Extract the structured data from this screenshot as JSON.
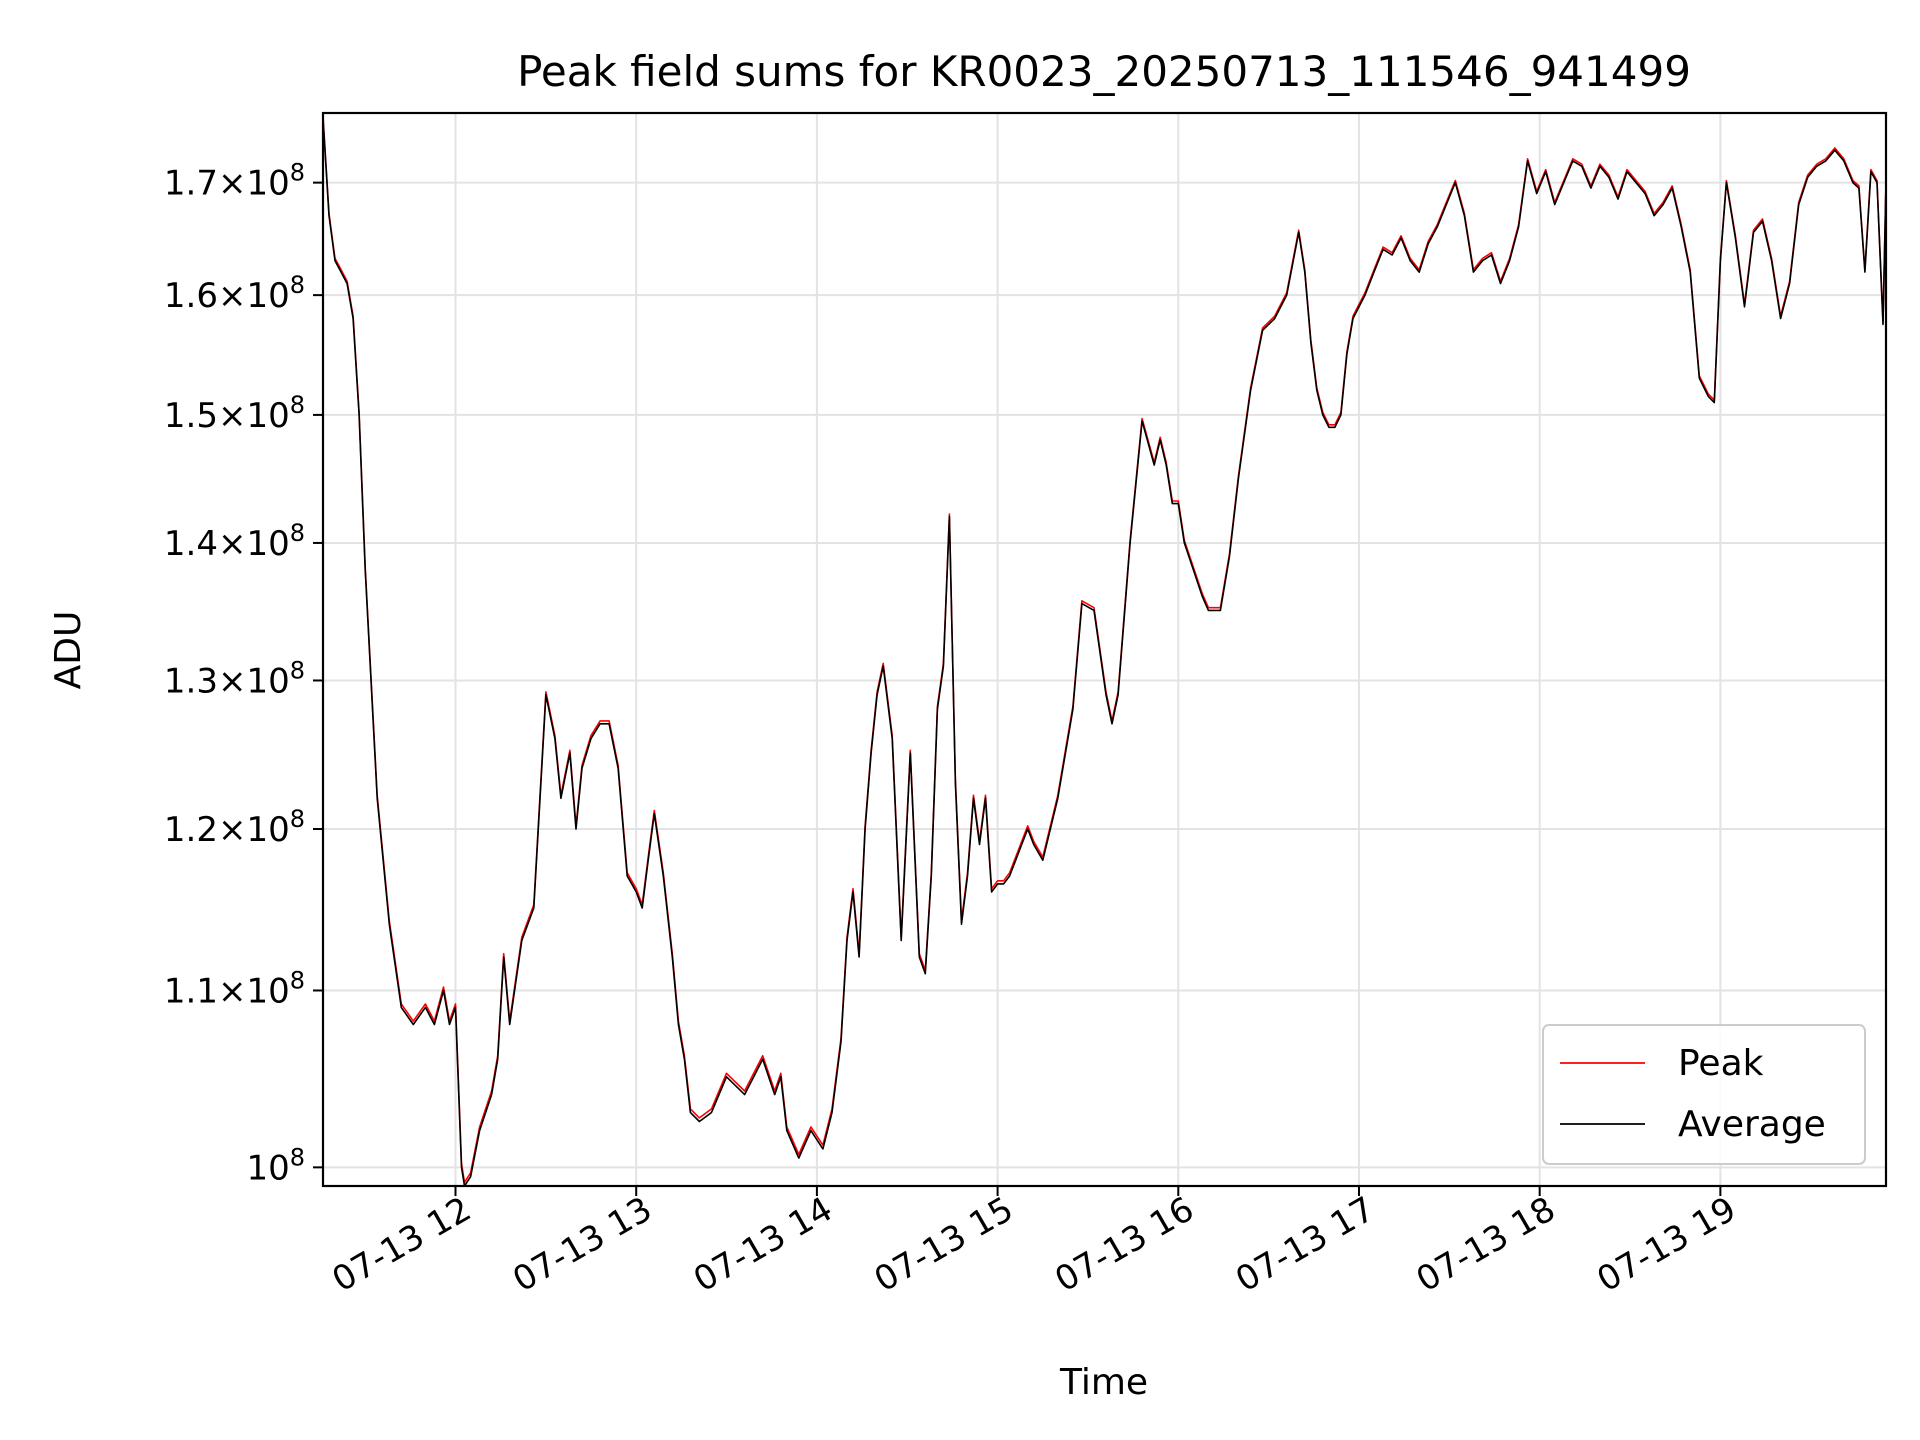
{
  "chart_data": {
    "type": "line",
    "title": "Peak field sums for KR0023_20250713_111546_941499",
    "xlabel": "Time",
    "ylabel": "ADU",
    "y_scale": "log",
    "x_unit": "datetime (2025-07-13 HH:MM)",
    "xlim": [
      "2025-07-13 11:16",
      "2025-07-13 19:55"
    ],
    "ylim": [
      99000000,
      176500000
    ],
    "grid": true,
    "legend_position": "lower-right",
    "x_ticks": [
      "07-13 12",
      "07-13 13",
      "07-13 14",
      "07-13 15",
      "07-13 16",
      "07-13 17",
      "07-13 18",
      "07-13 19"
    ],
    "y_ticks": [
      {
        "value": 100000000,
        "label": "10^8"
      },
      {
        "value": 110000000,
        "label": "1.1×10^8"
      },
      {
        "value": 120000000,
        "label": "1.2×10^8"
      },
      {
        "value": 130000000,
        "label": "1.3×10^8"
      },
      {
        "value": 140000000,
        "label": "1.4×10^8"
      },
      {
        "value": 150000000,
        "label": "1.5×10^8"
      },
      {
        "value": 160000000,
        "label": "1.6×10^8"
      },
      {
        "value": 170000000,
        "label": "1.7×10^8"
      }
    ],
    "series": [
      {
        "name": "Peak",
        "color": "#ff0000",
        "values_ref": "x_y_below",
        "offset_above_average": 200000
      },
      {
        "name": "Average",
        "color": "#000000"
      }
    ],
    "x": [
      "11:16",
      "11:18",
      "11:20",
      "11:22",
      "11:24",
      "11:26",
      "11:28",
      "11:30",
      "11:34",
      "11:38",
      "11:42",
      "11:46",
      "11:50",
      "11:53",
      "11:56",
      "11:58",
      "12:00",
      "12:02",
      "12:03",
      "12:05",
      "12:08",
      "12:12",
      "12:14",
      "12:16",
      "12:18",
      "12:22",
      "12:26",
      "12:30",
      "12:33",
      "12:35",
      "12:38",
      "12:40",
      "12:42",
      "12:45",
      "12:48",
      "12:51",
      "12:54",
      "12:57",
      "13:00",
      "13:02",
      "13:04",
      "13:06",
      "13:09",
      "13:12",
      "13:14",
      "13:16",
      "13:18",
      "13:21",
      "13:25",
      "13:30",
      "13:36",
      "13:42",
      "13:46",
      "13:48",
      "13:50",
      "13:54",
      "13:58",
      "14:02",
      "14:05",
      "14:08",
      "14:10",
      "14:12",
      "14:14",
      "14:16",
      "14:18",
      "14:20",
      "14:22",
      "14:25",
      "14:28",
      "14:31",
      "14:34",
      "14:36",
      "14:38",
      "14:40",
      "14:42",
      "14:44",
      "14:46",
      "14:48",
      "14:50",
      "14:52",
      "14:54",
      "14:56",
      "14:58",
      "15:00",
      "15:02",
      "15:04",
      "15:06",
      "15:08",
      "15:10",
      "15:12",
      "15:15",
      "15:20",
      "15:25",
      "15:28",
      "15:32",
      "15:36",
      "15:38",
      "15:40",
      "15:44",
      "15:48",
      "15:52",
      "15:54",
      "15:56",
      "15:58",
      "16:00",
      "16:02",
      "16:05",
      "16:08",
      "16:10",
      "16:12",
      "16:14",
      "16:17",
      "16:20",
      "16:24",
      "16:28",
      "16:32",
      "16:36",
      "16:40",
      "16:42",
      "16:44",
      "16:46",
      "16:48",
      "16:50",
      "16:52",
      "16:54",
      "16:56",
      "16:58",
      "17:00",
      "17:02",
      "17:05",
      "17:08",
      "17:11",
      "17:14",
      "17:17",
      "17:20",
      "17:23",
      "17:26",
      "17:29",
      "17:32",
      "17:35",
      "17:38",
      "17:41",
      "17:44",
      "17:47",
      "17:50",
      "17:53",
      "17:56",
      "17:59",
      "18:02",
      "18:05",
      "18:08",
      "18:11",
      "18:14",
      "18:17",
      "18:20",
      "18:23",
      "18:26",
      "18:29",
      "18:32",
      "18:35",
      "18:38",
      "18:41",
      "18:44",
      "18:47",
      "18:50",
      "18:53",
      "18:56",
      "18:58",
      "19:00",
      "19:02",
      "19:05",
      "19:08",
      "19:11",
      "19:14",
      "19:17",
      "19:20",
      "19:23",
      "19:26",
      "19:29",
      "19:32",
      "19:35",
      "19:38",
      "19:41",
      "19:44",
      "19:46",
      "19:48",
      "19:50",
      "19:52",
      "19:54",
      "19:55"
    ],
    "y": [
      176000000,
      167000000,
      163000000,
      162000000,
      161000000,
      158000000,
      150000000,
      138000000,
      122000000,
      114000000,
      109000000,
      108000000,
      109000000,
      108000000,
      110000000,
      108000000,
      109000000,
      100000000,
      99000000,
      99500000,
      102000000,
      104000000,
      106000000,
      112000000,
      108000000,
      113000000,
      115000000,
      129000000,
      126000000,
      122000000,
      125000000,
      120000000,
      124000000,
      126000000,
      127000000,
      127000000,
      124000000,
      117000000,
      116000000,
      115000000,
      118000000,
      121000000,
      117000000,
      112000000,
      108000000,
      106000000,
      103000000,
      102500000,
      103000000,
      105000000,
      104000000,
      106000000,
      104000000,
      105000000,
      102000000,
      100500000,
      102000000,
      101000000,
      103000000,
      107000000,
      113000000,
      116000000,
      112000000,
      120000000,
      125000000,
      129000000,
      131000000,
      126000000,
      113000000,
      125000000,
      112000000,
      111000000,
      117000000,
      128000000,
      131000000,
      142000000,
      123000000,
      114000000,
      117000000,
      122000000,
      119000000,
      122000000,
      116000000,
      116500000,
      116500000,
      117000000,
      118000000,
      119000000,
      120000000,
      119000000,
      118000000,
      122000000,
      128000000,
      135500000,
      135000000,
      129000000,
      127000000,
      129000000,
      140000000,
      149500000,
      146000000,
      148000000,
      146000000,
      143000000,
      143000000,
      140000000,
      138000000,
      136000000,
      135000000,
      135000000,
      135000000,
      139000000,
      145000000,
      152000000,
      157000000,
      158000000,
      160000000,
      165500000,
      162000000,
      156000000,
      152000000,
      150000000,
      149000000,
      149000000,
      150000000,
      155000000,
      158000000,
      159000000,
      160000000,
      162000000,
      164000000,
      163500000,
      165000000,
      163000000,
      162000000,
      164500000,
      166000000,
      168000000,
      170000000,
      167000000,
      162000000,
      163000000,
      163500000,
      161000000,
      163000000,
      166000000,
      172000000,
      169000000,
      171000000,
      168000000,
      170000000,
      172000000,
      171500000,
      169500000,
      171500000,
      170500000,
      168500000,
      171000000,
      170000000,
      169000000,
      167000000,
      168000000,
      169500000,
      166000000,
      162000000,
      153000000,
      151500000,
      151000000,
      163000000,
      170000000,
      165000000,
      159000000,
      165500000,
      166500000,
      163000000,
      158000000,
      161000000,
      168000000,
      170500000,
      171500000,
      172000000,
      173000000,
      172000000,
      170000000,
      169500000,
      162000000,
      171000000,
      170000000,
      157500000,
      170000000
    ]
  }
}
